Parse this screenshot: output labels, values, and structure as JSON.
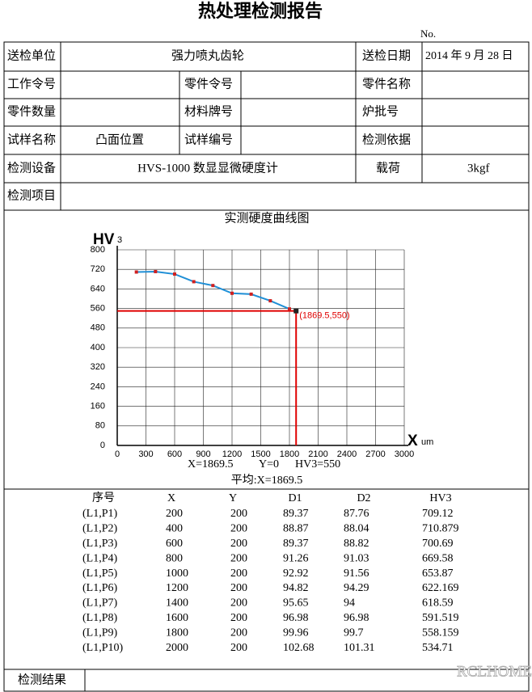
{
  "header": {
    "title": "热处理检测报告",
    "no_label": "No."
  },
  "form": {
    "sender_label": "送检单位",
    "sender": "强力喷丸齿轮",
    "date_label": "送检日期",
    "date": "2014 年 9 月 28 日",
    "work_order_label": "工作令号",
    "part_order_label": "零件令号",
    "part_name_label": "零件名称",
    "part_qty_label": "零件数量",
    "material_label": "材料牌号",
    "batch_label": "炉批号",
    "sample_name_label": "试样名称",
    "sample_name": "凸面位置",
    "sample_no_label": "试样编号",
    "basis_label": "检测依据",
    "equipment_label": "检测设备",
    "equipment": "HVS-1000 数显显微硬度计",
    "load_label": "载荷",
    "load": "3kgf",
    "item_label": "检测项目"
  },
  "chart_data": {
    "type": "line",
    "title": "实测硬度曲线图",
    "y_label": "HV",
    "y_label_sub": "3",
    "x_label": "X",
    "x_unit": "um",
    "x": [
      200,
      400,
      600,
      800,
      1000,
      1200,
      1400,
      1600,
      1800
    ],
    "values": [
      709.12,
      710.879,
      700.69,
      669.58,
      653.87,
      622.169,
      618.59,
      591.519,
      558.159
    ],
    "color": "#1f8fd6",
    "marker_color": "#d02020",
    "xlim": [
      0,
      3000
    ],
    "xticks": [
      0,
      300,
      600,
      900,
      1200,
      1500,
      1800,
      2100,
      2400,
      2700,
      3000
    ],
    "ylim": [
      0,
      800
    ],
    "yticks": [
      0,
      80,
      160,
      240,
      320,
      400,
      480,
      560,
      640,
      720,
      800
    ],
    "grid": true,
    "crosshair": {
      "x": 1869.5,
      "y": 550,
      "label": "(1869.5,550)",
      "color": "#e00000"
    },
    "readout": [
      "X=1869.5",
      "Y=0",
      "HV3=550"
    ],
    "average": "平均:X=1869.5"
  },
  "results_table": {
    "headers": [
      "序号",
      "X",
      "Y",
      "D1",
      "D2",
      "HV3"
    ],
    "rows": [
      [
        "(L1,P1)",
        "200",
        "200",
        "89.37",
        "87.76",
        "709.12"
      ],
      [
        "(L1,P2)",
        "400",
        "200",
        "88.87",
        "88.04",
        "710.879"
      ],
      [
        "(L1,P3)",
        "600",
        "200",
        "89.37",
        "88.82",
        "700.69"
      ],
      [
        "(L1,P4)",
        "800",
        "200",
        "91.26",
        "91.03",
        "669.58"
      ],
      [
        "(L1,P5)",
        "1000",
        "200",
        "92.92",
        "91.56",
        "653.87"
      ],
      [
        "(L1,P6)",
        "1200",
        "200",
        "94.82",
        "94.29",
        "622.169"
      ],
      [
        "(L1,P7)",
        "1400",
        "200",
        "95.65",
        "94",
        "618.59"
      ],
      [
        "(L1,P8)",
        "1600",
        "200",
        "96.98",
        "96.98",
        "591.519"
      ],
      [
        "(L1,P9)",
        "1800",
        "200",
        "99.96",
        "99.7",
        "558.159"
      ],
      [
        "(L1,P10)",
        "2000",
        "200",
        "102.68",
        "101.31",
        "534.71"
      ]
    ]
  },
  "footer": {
    "result_label": "检测结果"
  },
  "watermark": "RCLHOME.COM"
}
